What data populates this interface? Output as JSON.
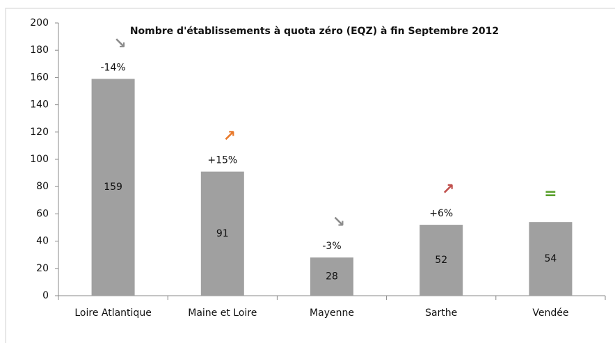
{
  "chart_data": {
    "type": "bar",
    "title": "Nombre d'établissements à quota zéro (EQZ) à fin Septembre 2012",
    "categories": [
      "Loire Atlantique",
      "Maine et Loire",
      "Mayenne",
      "Sarthe",
      "Vendée"
    ],
    "values": [
      159,
      91,
      28,
      52,
      54
    ],
    "color": "#a0a0a0",
    "ylim": [
      0,
      200
    ],
    "yticks": [
      0,
      20,
      40,
      60,
      80,
      100,
      120,
      140,
      160,
      180,
      200
    ],
    "grid": false,
    "annotations": [
      {
        "category": 0,
        "change": "-14%",
        "symbol": "↘",
        "color": "#8c8c8c"
      },
      {
        "category": 1,
        "change": "+15%",
        "symbol": "↗",
        "color": "#e8792a"
      },
      {
        "category": 2,
        "change": "-3%",
        "symbol": "↘",
        "color": "#8c8c8c"
      },
      {
        "category": 3,
        "change": "+6%",
        "symbol": "↗",
        "color": "#c0504d"
      },
      {
        "category": 4,
        "symbol": "=",
        "color": "#5aa02c"
      }
    ]
  }
}
